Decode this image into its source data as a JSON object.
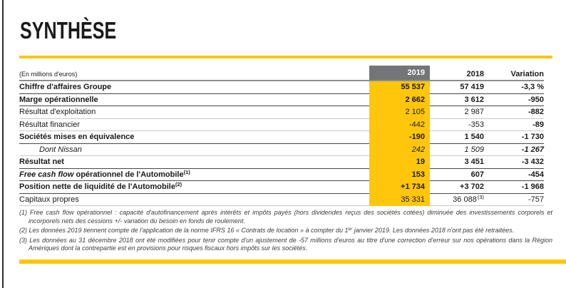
{
  "page": {
    "title": "SYNTHÈSE",
    "unit_label": "(En millions d'euros)"
  },
  "colors": {
    "accent_yellow": "#FFC60B",
    "header_gray": "#747578"
  },
  "table": {
    "columns": {
      "c2019": "2019",
      "c2018": "2018",
      "variation": "Variation"
    },
    "rows": [
      {
        "label": "Chiffre d'affaires Groupe",
        "label_italic": "",
        "label_sup": "",
        "v2019": "55 537",
        "v2018": "57 419",
        "v2018_sup": "",
        "variation": "-3,3 %",
        "bold": true,
        "italic": false,
        "indent": false,
        "variation_bold": true
      },
      {
        "label": "Marge opérationnelle",
        "label_italic": "",
        "label_sup": "",
        "v2019": "2 662",
        "v2018": "3 612",
        "v2018_sup": "",
        "variation": "-950",
        "bold": true,
        "italic": false,
        "indent": false,
        "variation_bold": true
      },
      {
        "label": "Résultat d'exploitation",
        "label_italic": "",
        "label_sup": "",
        "v2019": "2 105",
        "v2018": "2 987",
        "v2018_sup": "",
        "variation": "-882",
        "bold": false,
        "italic": false,
        "indent": false,
        "variation_bold": true
      },
      {
        "label": "Résultat financier",
        "label_italic": "",
        "label_sup": "",
        "v2019": "-442",
        "v2018": "-353",
        "v2018_sup": "",
        "variation": "-89",
        "bold": false,
        "italic": false,
        "indent": false,
        "variation_bold": true
      },
      {
        "label": "Sociétés mises en équivalence",
        "label_italic": "",
        "label_sup": "",
        "v2019": "-190",
        "v2018": "1 540",
        "v2018_sup": "",
        "variation": "-1 730",
        "bold": true,
        "italic": false,
        "indent": false,
        "variation_bold": true
      },
      {
        "label": "Dont Nissan",
        "label_italic": "",
        "label_sup": "",
        "v2019": "242",
        "v2018": "1 509",
        "v2018_sup": "",
        "variation": "-1 267",
        "bold": false,
        "italic": true,
        "indent": true,
        "variation_bold": true
      },
      {
        "label": "Résultat net",
        "label_italic": "",
        "label_sup": "",
        "v2019": "19",
        "v2018": "3 451",
        "v2018_sup": "",
        "variation": "-3 432",
        "bold": true,
        "italic": false,
        "indent": false,
        "variation_bold": true
      },
      {
        "label": " opérationnel de l'Automobile",
        "label_italic": "Free cash flow",
        "label_sup": "(1)",
        "v2019": "153",
        "v2018": "607",
        "v2018_sup": "",
        "variation": "-454",
        "bold": true,
        "italic": false,
        "indent": false,
        "variation_bold": true
      },
      {
        "label": "Position nette de liquidité de l'Automobile",
        "label_italic": "",
        "label_sup": "(2)",
        "v2019": "+1 734",
        "v2018": "+3 702",
        "v2018_sup": "",
        "variation": "-1 968",
        "bold": true,
        "italic": false,
        "indent": false,
        "variation_bold": true
      },
      {
        "label": "Capitaux propres",
        "label_italic": "",
        "label_sup": "",
        "v2019": "35 331",
        "v2018": "36 088",
        "v2018_sup": "(3)",
        "variation": "-757",
        "bold": false,
        "italic": false,
        "indent": false,
        "variation_bold": false
      }
    ]
  },
  "footnotes": [
    {
      "parts": [
        {
          "t": "(1) Free cash flow opérationnel : capacité d'autofinancement après intérêts et impôts payés (hors dividendes reçus des sociétés cotées) diminuée des investissements corporels et incorporels nets des cessions +/- variation du besoin en fonds de roulement."
        }
      ]
    },
    {
      "parts": [
        {
          "t": "(2) Les données 2019 tiennent compte de l'application de la norme IFRS 16 « Contrats de location » à compter du 1"
        },
        {
          "sup": "er"
        },
        {
          "t": " janvier 2019. Les données 2018 n'ont pas été retraitées."
        }
      ]
    },
    {
      "parts": [
        {
          "t": "(3) Les données au 31 décembre 2018 ont été modifiées pour tenir compte d'un ajustement de -57 millions d'euros au titre d'une correction d'erreur sur nos opérations dans la Région Amériques dont la contrepartie est en provisions pour risques fiscaux hors impôts sur les sociétés."
        }
      ]
    }
  ]
}
